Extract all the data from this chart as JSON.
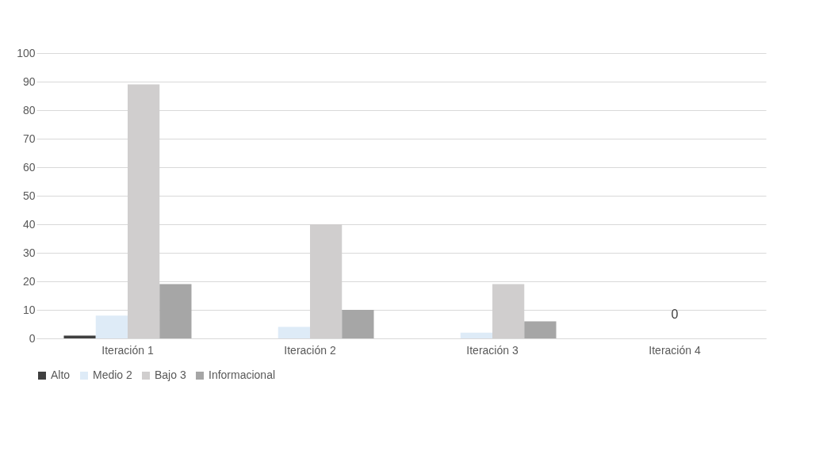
{
  "chart_data": {
    "type": "bar",
    "categories": [
      "Iteración 1",
      "Iteración 2",
      "Iteración 3",
      "Iteración 4"
    ],
    "series": [
      {
        "name": "Alto",
        "color": "#404040",
        "values": [
          1,
          0,
          0,
          0
        ]
      },
      {
        "name": "Medio 2",
        "color": "#deebf7",
        "values": [
          8,
          4,
          2,
          0
        ]
      },
      {
        "name": "Bajo 3",
        "color": "#d0cece",
        "values": [
          89,
          40,
          19,
          0
        ]
      },
      {
        "name": "Informacional",
        "color": "#a6a6a6",
        "values": [
          19,
          10,
          6,
          0
        ]
      }
    ],
    "ylim": [
      0,
      100
    ],
    "yticks": [
      0,
      10,
      20,
      30,
      40,
      50,
      60,
      70,
      80,
      90,
      100
    ],
    "annotations": [
      {
        "text": "0",
        "x": "Iteración 4",
        "y": 0
      }
    ],
    "grid": "y",
    "legend": "bottom"
  }
}
